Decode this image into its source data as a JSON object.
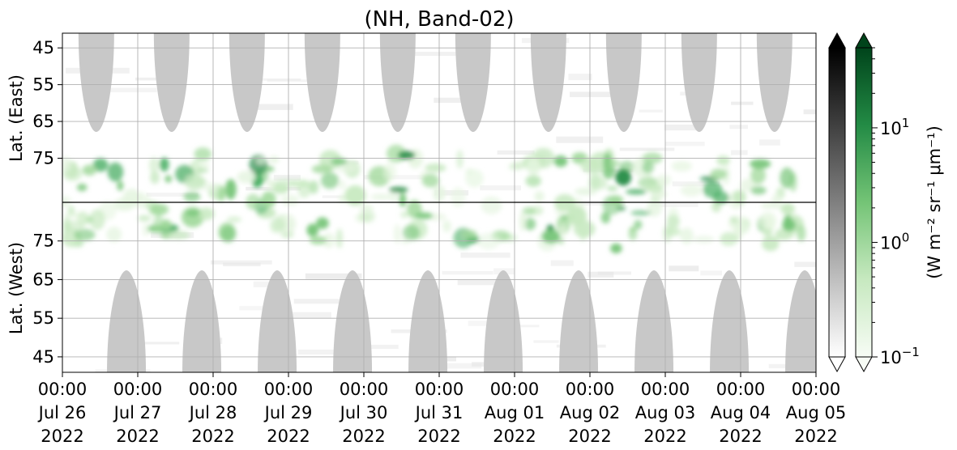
{
  "chart_data": {
    "type": "heatmap",
    "title": "(NH, Band-02)",
    "ylabel_top": "Lat. (East)",
    "ylabel_bottom": "Lat. (West)",
    "colorbar_label": "(W m⁻² sr⁻¹ μm⁻¹)",
    "x_start": "2022-07-26 00:00",
    "x_end": "2022-08-05 00:00",
    "x_ticks": [
      {
        "time": "00:00",
        "date": "Jul 26",
        "year": "2022"
      },
      {
        "time": "00:00",
        "date": "Jul 27",
        "year": "2022"
      },
      {
        "time": "00:00",
        "date": "Jul 28",
        "year": "2022"
      },
      {
        "time": "00:00",
        "date": "Jul 29",
        "year": "2022"
      },
      {
        "time": "00:00",
        "date": "Jul 30",
        "year": "2022"
      },
      {
        "time": "00:00",
        "date": "Jul 31",
        "year": "2022"
      },
      {
        "time": "00:00",
        "date": "Aug 01",
        "year": "2022"
      },
      {
        "time": "00:00",
        "date": "Aug 02",
        "year": "2022"
      },
      {
        "time": "00:00",
        "date": "Aug 03",
        "year": "2022"
      },
      {
        "time": "00:00",
        "date": "Aug 04",
        "year": "2022"
      },
      {
        "time": "00:00",
        "date": "Aug 05",
        "year": "2022"
      }
    ],
    "y_ticks_top": [
      "45",
      "55",
      "65",
      "75"
    ],
    "y_ticks_bottom": [
      "75",
      "65",
      "55",
      "45"
    ],
    "lat_top_range": [
      41,
      87
    ],
    "lat_bottom_range": [
      41,
      85
    ],
    "colorbar_ticks": [
      "10^1",
      "10^0",
      "10^-1"
    ],
    "colorbar_range": [
      0.1,
      50
    ],
    "colorbar_scale": "log",
    "colormaps": {
      "gray": [
        "#ffffff",
        "#000000"
      ],
      "green": [
        "#f7fcf5",
        "#00441b"
      ]
    },
    "grid": true,
    "night_mask_color": "#c8c8c8"
  }
}
